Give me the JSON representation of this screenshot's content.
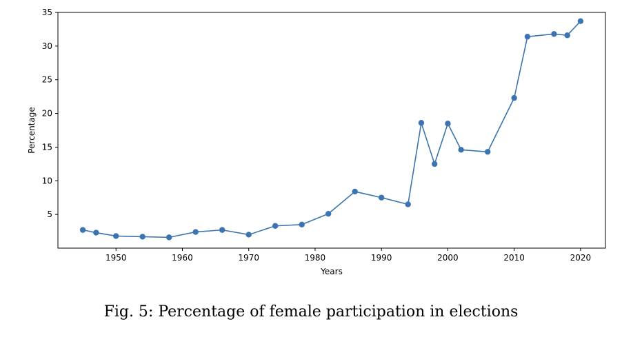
{
  "caption": "Fig. 5: Percentage of female participation in elections",
  "chart_data": {
    "type": "line",
    "title": "",
    "xlabel": "Years",
    "ylabel": "Percentage",
    "xlim": [
      1941.25,
      2023.75
    ],
    "ylim": [
      0.0,
      35.0
    ],
    "xticks": [
      1950,
      1960,
      1970,
      1980,
      1990,
      2000,
      2010,
      2020
    ],
    "yticks": [
      5,
      10,
      15,
      20,
      25,
      30,
      35
    ],
    "grid": false,
    "legend": false,
    "series_color": "#3b74b0",
    "series": [
      {
        "x": [
          1945,
          1947,
          1950,
          1954,
          1958,
          1962,
          1966,
          1970,
          1974,
          1978,
          1982,
          1986,
          1990,
          1994,
          1996,
          1998,
          2000,
          2002,
          2006,
          2010,
          2012,
          2016,
          2018,
          2020
        ],
        "y": [
          2.7,
          2.3,
          1.8,
          1.7,
          1.6,
          2.4,
          2.7,
          2.0,
          3.3,
          3.5,
          5.1,
          8.4,
          7.5,
          6.5,
          18.6,
          12.5,
          18.5,
          14.6,
          14.3,
          22.3,
          31.4,
          31.8,
          31.6,
          33.7
        ]
      }
    ]
  }
}
